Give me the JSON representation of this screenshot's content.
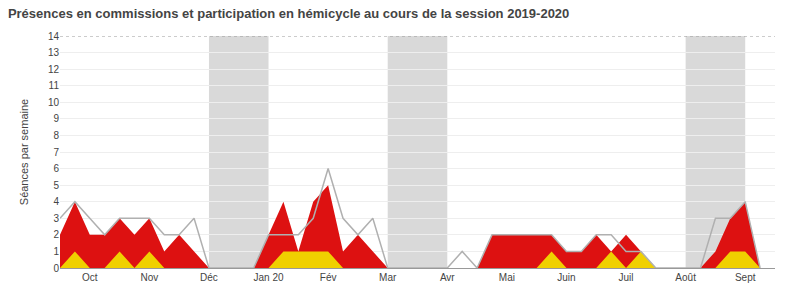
{
  "chart_data": {
    "type": "area",
    "title": "Présences en commissions et participation en hémicycle au cours de la session 2019-2020",
    "ylabel": "Séances par semaine",
    "x": [
      0,
      1,
      2,
      3,
      4,
      5,
      6,
      7,
      8,
      9,
      10,
      11,
      12,
      13,
      14,
      15,
      16,
      17,
      18,
      19,
      20,
      21,
      22,
      23,
      24,
      25,
      26,
      27,
      28,
      29,
      30,
      31,
      32,
      33,
      34,
      35,
      36,
      37,
      38,
      39,
      40,
      41,
      42,
      43,
      44,
      45,
      46,
      47
    ],
    "xlim": [
      0,
      48
    ],
    "xticks": [
      {
        "value": 2,
        "label": "Oct"
      },
      {
        "value": 6,
        "label": "Nov"
      },
      {
        "value": 10,
        "label": "Déc"
      },
      {
        "value": 14,
        "label": "Jan 20"
      },
      {
        "value": 18,
        "label": "Fév"
      },
      {
        "value": 22,
        "label": "Mar"
      },
      {
        "value": 26,
        "label": "Avr"
      },
      {
        "value": 30,
        "label": "Mai"
      },
      {
        "value": 34,
        "label": "Juin"
      },
      {
        "value": 38,
        "label": "Juil"
      },
      {
        "value": 42,
        "label": "Août"
      },
      {
        "value": 46,
        "label": "Sept"
      }
    ],
    "ylim": [
      0,
      14
    ],
    "yticks": [
      0,
      1,
      2,
      3,
      4,
      5,
      6,
      7,
      8,
      9,
      10,
      11,
      12,
      13,
      14
    ],
    "grid": true,
    "series": [
      {
        "type": "area",
        "color": "#dd1111",
        "values": [
          2,
          4,
          2,
          2,
          3,
          2,
          3,
          1,
          2,
          1,
          0,
          0,
          0,
          0,
          2,
          4,
          1,
          4,
          5,
          1,
          2,
          1,
          0,
          0,
          0,
          0,
          0,
          0,
          0,
          2,
          2,
          2,
          2,
          2,
          1,
          1,
          2,
          1,
          2,
          1,
          0,
          0,
          0,
          0,
          1,
          3,
          4,
          0
        ]
      },
      {
        "type": "area",
        "color": "#f0d000",
        "values": [
          0,
          1,
          0,
          0,
          1,
          0,
          1,
          0,
          0,
          0,
          0,
          0,
          0,
          0,
          0,
          1,
          1,
          1,
          1,
          0,
          0,
          0,
          0,
          0,
          0,
          0,
          0,
          0,
          0,
          0,
          0,
          0,
          0,
          1,
          0,
          0,
          0,
          1,
          0,
          1,
          0,
          0,
          0,
          0,
          0,
          1,
          1,
          0
        ]
      },
      {
        "type": "line",
        "color": "#b0b0b0",
        "values": [
          3,
          4,
          3,
          2,
          3,
          3,
          3,
          2,
          2,
          3,
          0,
          0,
          0,
          0,
          2,
          2,
          2,
          3,
          6,
          3,
          2,
          3,
          0,
          0,
          0,
          0,
          0,
          1,
          0,
          2,
          2,
          2,
          2,
          2,
          1,
          1,
          2,
          2,
          1,
          1,
          0,
          0,
          0,
          0,
          3,
          3,
          4,
          0
        ]
      }
    ],
    "shaded_x_ranges": [
      {
        "x_start": 10,
        "x_end": 14,
        "color": "#a0a0a0"
      },
      {
        "x_start": 22,
        "x_end": 26,
        "color": "#a0a0a0"
      },
      {
        "x_start": 42,
        "x_end": 46,
        "color": "#a0a0a0"
      }
    ]
  }
}
